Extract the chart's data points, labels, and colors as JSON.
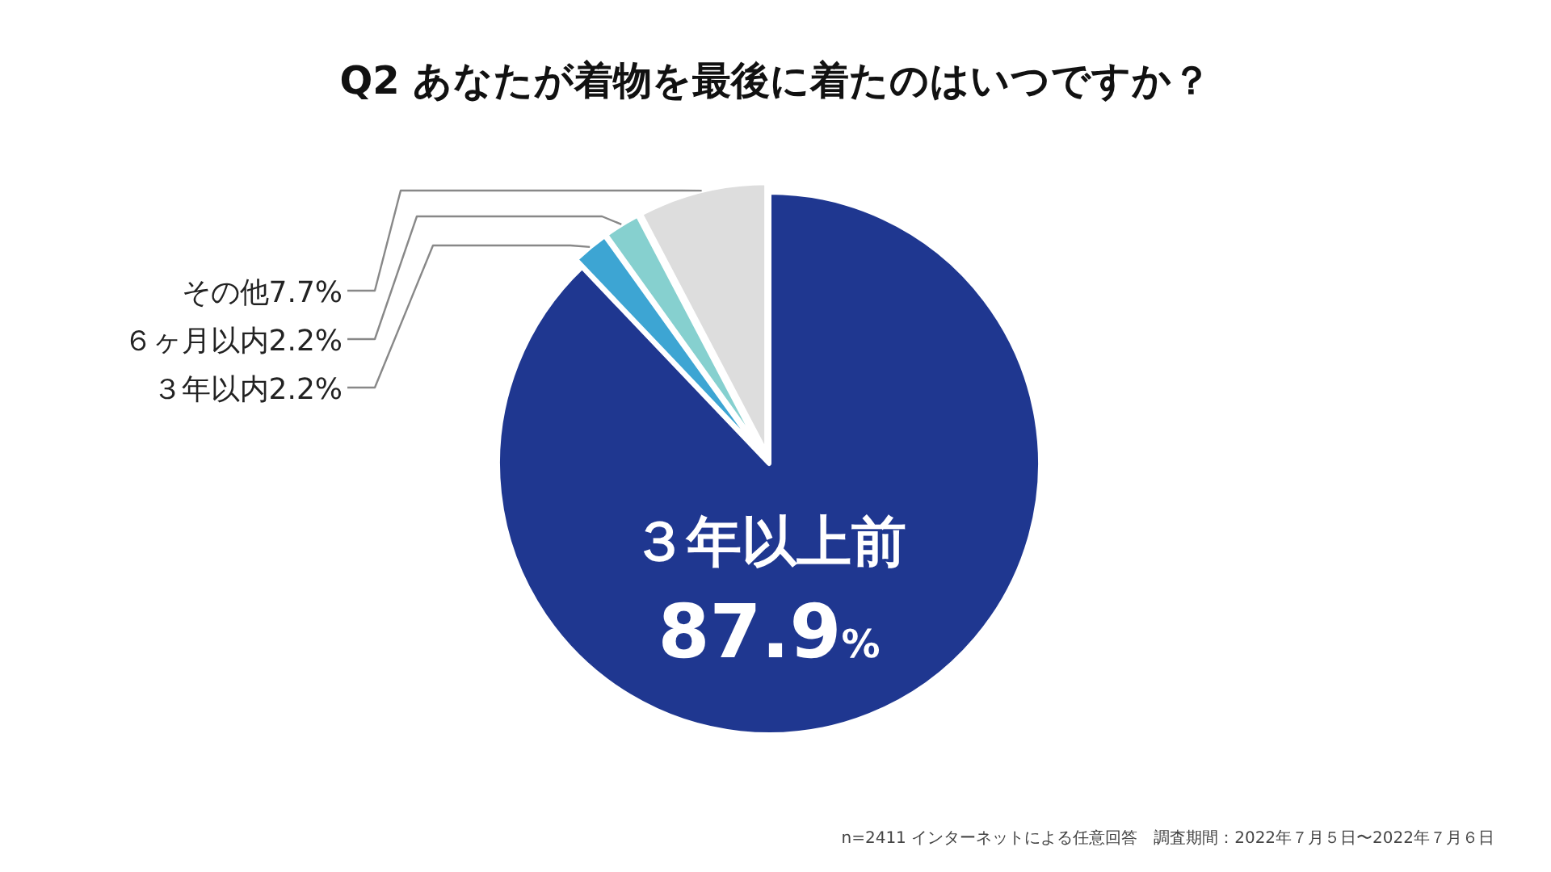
{
  "chart_data": {
    "type": "pie",
    "title": "Q2 あなたが着物を最後に着たのはいつですか？",
    "categories": [
      "３年以上前",
      "３年以内",
      "６ヶ月以内",
      "その他"
    ],
    "values": [
      87.9,
      2.2,
      2.2,
      7.7
    ],
    "colors": [
      "#1f3790",
      "#3da5d3",
      "#86d0cf",
      "#dddddd"
    ],
    "value_labels": [
      "87.9%",
      "2.2%",
      "2.2%",
      "7.7%"
    ],
    "annotations": [
      "n=2411 インターネットによる任意回答　調査期間：2022年７月５日〜2022年７月６日"
    ]
  }
}
